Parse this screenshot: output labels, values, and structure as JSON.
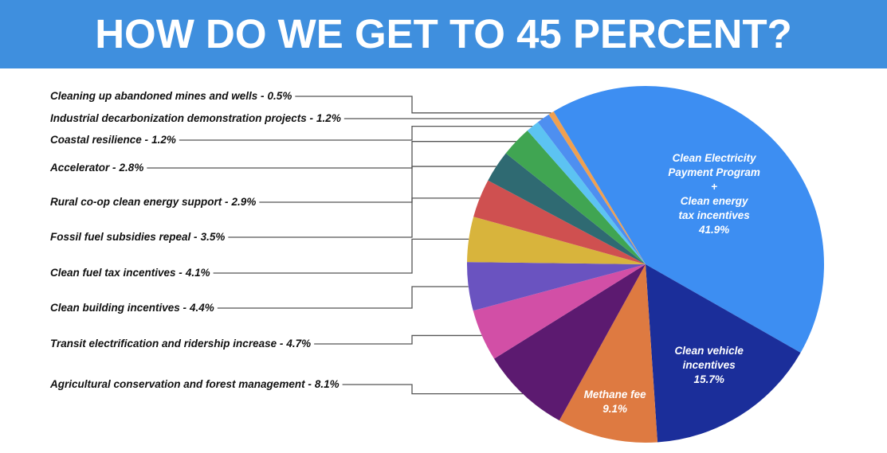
{
  "chart_data": {
    "type": "pie",
    "title": "HOW DO WE GET TO 45 PERCENT?",
    "categories": [
      "Clean Electricity\nPayment Program\n+\nClean energy\ntax incentives",
      "Clean vehicle\nincentives",
      "Methane fee",
      "Agricultural conservation and forest management -",
      "Transit electrification and ridership increase -",
      "Clean building incentives -",
      "Clean fuel tax incentives -",
      "Fossil fuel subsidies repeal -",
      "Rural co-op clean energy support  -",
      "Accelerator -",
      "Coastal resilience -",
      "Industrial decarbonization demonstration projects -",
      "Cleaning up abandoned mines and wells -"
    ],
    "values": [
      41.9,
      15.7,
      9.1,
      8.1,
      4.7,
      4.4,
      4.1,
      3.5,
      2.9,
      2.8,
      1.2,
      1.2,
      0.5
    ],
    "value_labels": [
      "41.9%",
      "15.7%",
      "9.1%",
      "8.1%",
      "4.7%",
      "4.4%",
      "4.1%",
      "3.5%",
      "2.9%",
      "2.8%",
      "1.2%",
      "1.2%",
      "0.5%"
    ],
    "colors": [
      "#3d8ef2",
      "#1b2e9a",
      "#de7a41",
      "#5c1a70",
      "#d24fa6",
      "#6a53c0",
      "#d8b43c",
      "#cf5050",
      "#2f6a72",
      "#40a552",
      "#5cc3f2",
      "#4e8ff0",
      "#f0a050"
    ]
  }
}
